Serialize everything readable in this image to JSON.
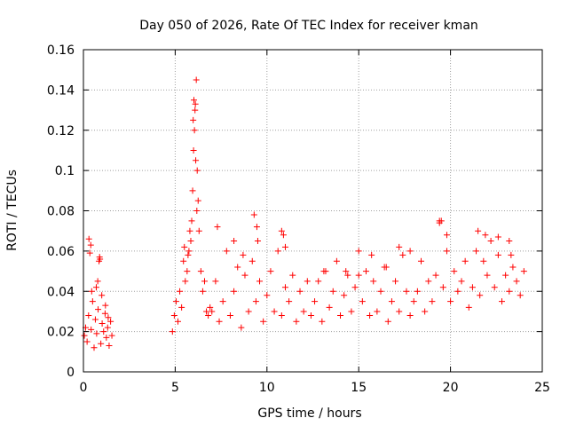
{
  "chart_data": {
    "type": "scatter",
    "title": "Day 050 of 2026, Rate Of TEC Index for receiver kman",
    "xlabel": "GPS time / hours",
    "ylabel": "ROTI / TECUs",
    "xlim": [
      0,
      25
    ],
    "ylim": [
      0,
      0.16
    ],
    "xticks": [
      0,
      5,
      10,
      15,
      20,
      25
    ],
    "xtick_labels": [
      "0",
      "5",
      "10",
      "15",
      "20",
      "25"
    ],
    "yticks": [
      0,
      0.02,
      0.04,
      0.06,
      0.08,
      0.1,
      0.12,
      0.14,
      0.16
    ],
    "ytick_labels": [
      "0",
      "0.02",
      "0.04",
      "0.06",
      "0.08",
      "0.1",
      "0.12",
      "0.14",
      "0.16"
    ],
    "grid": true,
    "marker": "+",
    "color": "#ff0000",
    "series": [
      {
        "x": [
          0.05,
          0.12,
          0.2,
          0.28,
          0.35,
          0.42,
          0.5,
          0.58,
          0.65,
          0.72,
          0.8,
          0.88,
          0.95,
          1.02,
          1.1,
          1.18,
          1.25,
          1.32,
          1.4,
          1.48,
          1.55,
          0.3,
          0.45,
          0.7,
          0.85,
          1.0,
          1.2,
          1.35,
          0.4,
          0.78,
          0.9,
          4.85,
          4.95,
          5.05,
          5.15,
          5.25,
          5.35,
          5.45,
          5.55,
          5.65,
          5.75,
          5.85,
          5.9,
          5.95,
          6.0,
          6.05,
          6.1,
          6.15,
          6.2,
          6.25,
          6.3,
          6.4,
          6.5,
          6.6,
          6.7,
          6.8,
          6.9,
          5.5,
          5.7,
          5.8,
          5.98,
          6.02,
          6.08,
          6.12,
          6.18,
          7.0,
          7.2,
          7.4,
          7.6,
          7.8,
          8.0,
          8.2,
          8.4,
          8.6,
          8.8,
          9.0,
          9.2,
          9.4,
          9.6,
          9.8,
          10.0,
          10.2,
          10.4,
          10.6,
          10.8,
          11.0,
          11.2,
          11.4,
          11.6,
          11.8,
          12.0,
          7.3,
          8.2,
          8.7,
          9.3,
          9.45,
          9.5,
          10.8,
          10.9,
          11.0,
          12.2,
          12.4,
          12.6,
          12.8,
          13.0,
          13.2,
          13.4,
          13.6,
          13.8,
          14.0,
          14.2,
          14.4,
          14.6,
          14.8,
          15.0,
          15.2,
          15.4,
          15.6,
          15.8,
          16.0,
          16.2,
          16.4,
          16.6,
          16.8,
          17.0,
          17.2,
          17.4,
          17.6,
          17.8,
          18.0,
          13.1,
          14.3,
          15.0,
          15.7,
          16.5,
          17.2,
          17.8,
          18.2,
          18.4,
          18.6,
          18.8,
          19.0,
          19.2,
          19.4,
          19.6,
          19.8,
          20.0,
          20.2,
          20.4,
          20.6,
          20.8,
          21.0,
          21.2,
          21.4,
          21.6,
          21.8,
          22.0,
          22.2,
          22.4,
          22.6,
          22.8,
          23.0,
          23.2,
          23.4,
          23.6,
          23.8,
          24.0,
          19.4,
          19.5,
          19.8,
          21.5,
          21.9,
          22.6,
          23.2,
          23.3
        ],
        "y": [
          0.018,
          0.022,
          0.015,
          0.028,
          0.059,
          0.021,
          0.035,
          0.012,
          0.026,
          0.019,
          0.031,
          0.057,
          0.014,
          0.024,
          0.02,
          0.029,
          0.017,
          0.022,
          0.013,
          0.025,
          0.018,
          0.066,
          0.04,
          0.042,
          0.055,
          0.038,
          0.033,
          0.027,
          0.063,
          0.045,
          0.056,
          0.02,
          0.028,
          0.035,
          0.025,
          0.04,
          0.032,
          0.055,
          0.045,
          0.05,
          0.06,
          0.065,
          0.075,
          0.09,
          0.11,
          0.12,
          0.133,
          0.145,
          0.1,
          0.085,
          0.07,
          0.05,
          0.04,
          0.045,
          0.03,
          0.028,
          0.032,
          0.062,
          0.058,
          0.07,
          0.125,
          0.135,
          0.13,
          0.105,
          0.08,
          0.03,
          0.045,
          0.025,
          0.035,
          0.06,
          0.028,
          0.04,
          0.052,
          0.022,
          0.048,
          0.03,
          0.055,
          0.035,
          0.045,
          0.025,
          0.038,
          0.05,
          0.03,
          0.06,
          0.028,
          0.042,
          0.035,
          0.048,
          0.025,
          0.04,
          0.03,
          0.072,
          0.065,
          0.058,
          0.078,
          0.072,
          0.065,
          0.07,
          0.068,
          0.062,
          0.045,
          0.028,
          0.035,
          0.045,
          0.025,
          0.05,
          0.032,
          0.04,
          0.055,
          0.028,
          0.038,
          0.048,
          0.03,
          0.042,
          0.06,
          0.035,
          0.05,
          0.028,
          0.045,
          0.03,
          0.04,
          0.052,
          0.025,
          0.035,
          0.045,
          0.03,
          0.058,
          0.04,
          0.028,
          0.035,
          0.05,
          0.05,
          0.048,
          0.058,
          0.052,
          0.062,
          0.06,
          0.04,
          0.055,
          0.03,
          0.045,
          0.035,
          0.048,
          0.075,
          0.042,
          0.06,
          0.035,
          0.05,
          0.04,
          0.045,
          0.055,
          0.032,
          0.042,
          0.06,
          0.038,
          0.055,
          0.048,
          0.065,
          0.042,
          0.058,
          0.035,
          0.048,
          0.04,
          0.052,
          0.045,
          0.038,
          0.05,
          0.074,
          0.075,
          0.068,
          0.07,
          0.068,
          0.067,
          0.065,
          0.058
        ]
      }
    ]
  }
}
